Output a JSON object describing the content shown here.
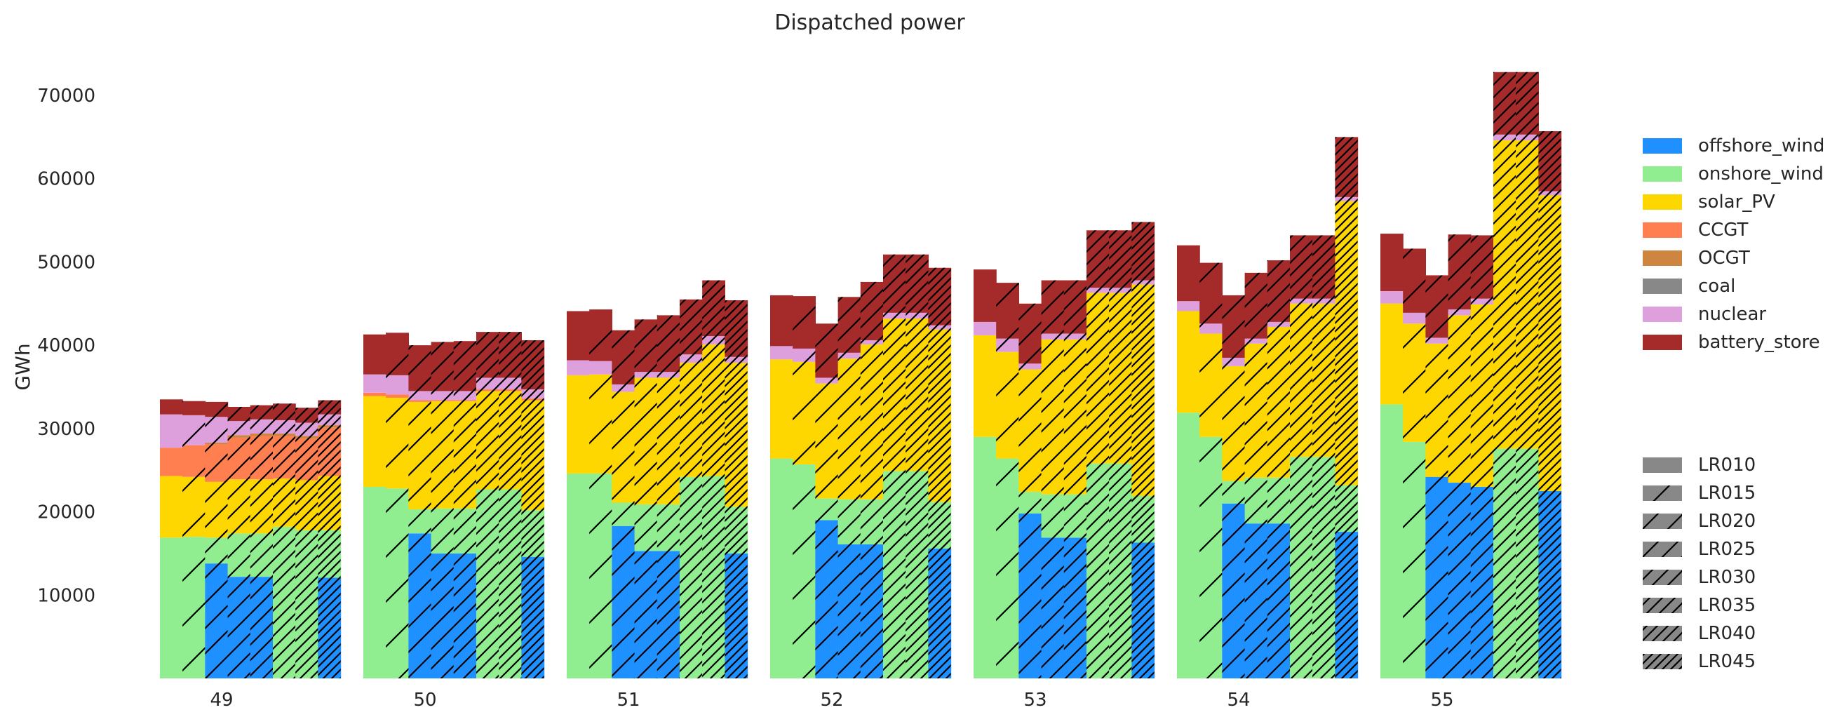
{
  "chart_data": {
    "type": "bar",
    "stacked": true,
    "title": "Dispatched power",
    "xlabel": "",
    "ylabel": "GWh",
    "ylim": [
      0,
      75000
    ],
    "yticks": [
      10000,
      20000,
      30000,
      40000,
      50000,
      60000,
      70000
    ],
    "grid": false,
    "categories": [
      "49",
      "50",
      "51",
      "52",
      "53",
      "54",
      "55"
    ],
    "hatch_groups": [
      "LR010",
      "LR015",
      "LR020",
      "LR025",
      "LR030",
      "LR035",
      "LR040",
      "LR045"
    ],
    "hatch_note": "each category holds 8 adjacent bars, one per hatch group in order",
    "legend_position": "right",
    "series": [
      {
        "name": "offshore_wind",
        "color": "#1e90ff",
        "values": [
          [
            0,
            0,
            13800,
            12200,
            12200,
            0,
            0,
            12100
          ],
          [
            0,
            0,
            17400,
            15000,
            15000,
            0,
            0,
            14600
          ],
          [
            0,
            0,
            18300,
            15300,
            15300,
            0,
            0,
            15000
          ],
          [
            0,
            0,
            19000,
            16100,
            16100,
            0,
            0,
            15600
          ],
          [
            0,
            0,
            19800,
            16900,
            16900,
            0,
            0,
            16300
          ],
          [
            0,
            0,
            21000,
            18600,
            18600,
            0,
            0,
            17600
          ],
          [
            0,
            0,
            24200,
            23500,
            23000,
            0,
            0,
            22500
          ]
        ]
      },
      {
        "name": "onshore_wind",
        "color": "#90ee90",
        "values": [
          [
            16900,
            17000,
            3100,
            5200,
            5200,
            18200,
            17800,
            5700
          ],
          [
            23000,
            22800,
            2900,
            5400,
            5400,
            22700,
            22700,
            5600
          ],
          [
            24600,
            24600,
            2800,
            5600,
            5600,
            24200,
            24300,
            5600
          ],
          [
            26400,
            25700,
            2600,
            5400,
            5400,
            24900,
            24900,
            5600
          ],
          [
            29000,
            26400,
            2600,
            5200,
            5200,
            25800,
            25800,
            5600
          ],
          [
            31900,
            29000,
            2700,
            5500,
            5500,
            26600,
            26600,
            5600
          ],
          [
            32900,
            28400,
            0,
            0,
            0,
            27600,
            27600,
            0
          ]
        ]
      },
      {
        "name": "solar_PV",
        "color": "#ffd700",
        "values": [
          [
            7400,
            7200,
            6700,
            6500,
            6500,
            5800,
            6000,
            6500
          ],
          [
            10900,
            10900,
            12900,
            12900,
            12900,
            11800,
            11800,
            13200
          ],
          [
            11800,
            11900,
            13300,
            15200,
            15200,
            13700,
            15800,
            17300
          ],
          [
            11900,
            12300,
            13800,
            16900,
            18600,
            18300,
            18300,
            20700
          ],
          [
            12200,
            12800,
            14700,
            18600,
            18600,
            20500,
            20500,
            25400
          ],
          [
            12200,
            12400,
            13800,
            16100,
            18100,
            18400,
            18400,
            34100
          ],
          [
            12100,
            14200,
            16000,
            20100,
            21900,
            37000,
            37000,
            35500
          ]
        ]
      },
      {
        "name": "CCGT",
        "color": "#ff7f50",
        "values": [
          [
            3400,
            3800,
            4500,
            5000,
            5200,
            5100,
            5000,
            5800
          ],
          [
            400,
            400,
            200,
            100,
            100,
            200,
            200,
            200
          ],
          [
            0,
            0,
            0,
            0,
            0,
            0,
            0,
            0
          ],
          [
            0,
            0,
            0,
            0,
            0,
            0,
            0,
            0
          ],
          [
            0,
            0,
            0,
            0,
            0,
            0,
            0,
            0
          ],
          [
            0,
            0,
            0,
            0,
            0,
            0,
            0,
            0
          ],
          [
            0,
            0,
            0,
            0,
            0,
            0,
            0,
            0
          ]
        ]
      },
      {
        "name": "OCGT",
        "color": "#cd853f",
        "values": [
          [
            0,
            0,
            200,
            300,
            300,
            300,
            300,
            300
          ],
          [
            0,
            0,
            0,
            0,
            0,
            0,
            0,
            0
          ],
          [
            0,
            0,
            0,
            0,
            0,
            0,
            0,
            0
          ],
          [
            0,
            0,
            0,
            0,
            0,
            0,
            0,
            0
          ],
          [
            0,
            0,
            0,
            0,
            0,
            0,
            0,
            0
          ],
          [
            0,
            0,
            0,
            0,
            0,
            0,
            0,
            0
          ],
          [
            0,
            0,
            0,
            0,
            0,
            0,
            0,
            0
          ]
        ]
      },
      {
        "name": "coal",
        "color": "#888888",
        "values": [
          [
            0,
            0,
            0,
            0,
            0,
            0,
            0,
            0
          ],
          [
            0,
            0,
            0,
            0,
            0,
            0,
            0,
            0
          ],
          [
            0,
            0,
            0,
            0,
            0,
            0,
            0,
            0
          ],
          [
            0,
            0,
            0,
            0,
            0,
            0,
            0,
            0
          ],
          [
            0,
            0,
            0,
            0,
            0,
            0,
            0,
            0
          ],
          [
            0,
            0,
            0,
            0,
            0,
            0,
            0,
            0
          ],
          [
            0,
            0,
            0,
            0,
            0,
            0,
            0,
            0
          ]
        ]
      },
      {
        "name": "nuclear",
        "color": "#dda0dd",
        "values": [
          [
            4000,
            3600,
            3100,
            1700,
            1700,
            1600,
            1600,
            1300
          ],
          [
            2200,
            2300,
            1100,
            1100,
            1100,
            1400,
            1400,
            1100
          ],
          [
            1800,
            1600,
            900,
            700,
            700,
            1000,
            1000,
            700
          ],
          [
            1600,
            1600,
            700,
            700,
            500,
            700,
            700,
            500
          ],
          [
            1600,
            1600,
            700,
            700,
            700,
            600,
            600,
            500
          ],
          [
            1200,
            1200,
            1000,
            600,
            600,
            600,
            600,
            500
          ],
          [
            1500,
            1300,
            700,
            700,
            700,
            700,
            700,
            500
          ]
        ]
      },
      {
        "name": "battery_store",
        "color": "#a52a2a",
        "values": [
          [
            1800,
            1700,
            1800,
            1700,
            1700,
            2000,
            1800,
            1700
          ],
          [
            4800,
            5100,
            5500,
            5900,
            6000,
            5500,
            5500,
            5900
          ],
          [
            5900,
            6200,
            6500,
            6300,
            6800,
            6600,
            6700,
            6800
          ],
          [
            6100,
            6300,
            6500,
            6700,
            7000,
            7000,
            7000,
            6900
          ],
          [
            6300,
            6700,
            7200,
            6400,
            6400,
            6900,
            6900,
            7000
          ],
          [
            6700,
            7300,
            7500,
            7900,
            7400,
            7600,
            7600,
            7200
          ],
          [
            6900,
            7700,
            7500,
            9000,
            7600,
            7500,
            7500,
            7200
          ]
        ]
      }
    ]
  }
}
